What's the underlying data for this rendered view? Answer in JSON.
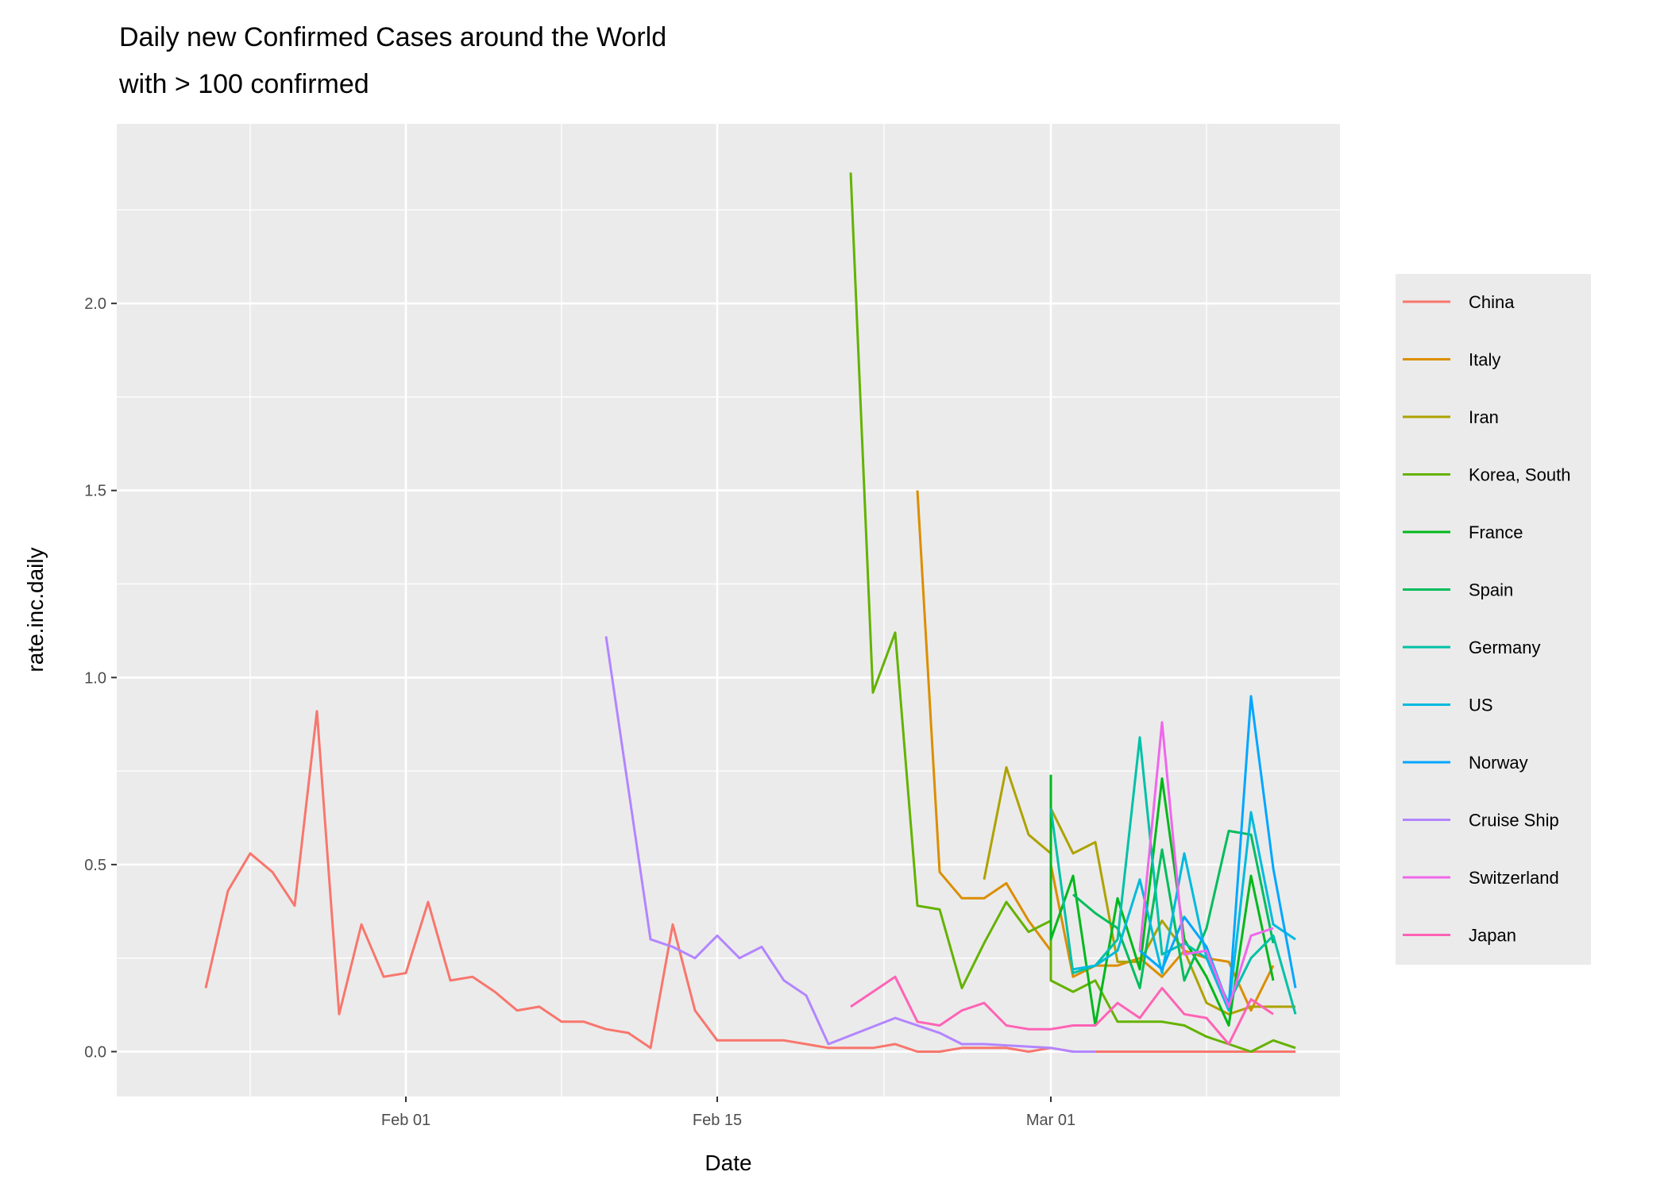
{
  "chart_data": {
    "type": "line",
    "title": "Daily new Confirmed Cases around the World",
    "subtitle": "with > 100 confirmed",
    "xlabel": "Date",
    "ylabel": "rate.inc.daily",
    "x_ticks": [
      {
        "date": "2020-02-01",
        "label": "Feb 01"
      },
      {
        "date": "2020-02-15",
        "label": "Feb 15"
      },
      {
        "date": "2020-03-01",
        "label": "Mar 01"
      }
    ],
    "y_ticks": [
      {
        "value": 0.0,
        "label": "0.0"
      },
      {
        "value": 0.5,
        "label": "0.5"
      },
      {
        "value": 1.0,
        "label": "1.0"
      },
      {
        "value": 1.5,
        "label": "1.5"
      },
      {
        "value": 2.0,
        "label": "2.0"
      }
    ],
    "xlim": [
      "2020-01-19",
      "2020-03-14"
    ],
    "ylim": [
      -0.12,
      2.48
    ],
    "grid": true,
    "legend_position": "right",
    "series": [
      {
        "name": "China",
        "color": "#F8766D",
        "points": [
          [
            "2020-01-23",
            0.17
          ],
          [
            "2020-01-24",
            0.43
          ],
          [
            "2020-01-25",
            0.53
          ],
          [
            "2020-01-26",
            0.48
          ],
          [
            "2020-01-27",
            0.39
          ],
          [
            "2020-01-28",
            0.91
          ],
          [
            "2020-01-29",
            0.1
          ],
          [
            "2020-01-30",
            0.34
          ],
          [
            "2020-01-31",
            0.2
          ],
          [
            "2020-02-01",
            0.21
          ],
          [
            "2020-02-02",
            0.4
          ],
          [
            "2020-02-03",
            0.19
          ],
          [
            "2020-02-04",
            0.2
          ],
          [
            "2020-02-05",
            0.16
          ],
          [
            "2020-02-06",
            0.11
          ],
          [
            "2020-02-07",
            0.12
          ],
          [
            "2020-02-08",
            0.08
          ],
          [
            "2020-02-09",
            0.08
          ],
          [
            "2020-02-10",
            0.06
          ],
          [
            "2020-02-11",
            0.05
          ],
          [
            "2020-02-12",
            0.01
          ],
          [
            "2020-02-13",
            0.34
          ],
          [
            "2020-02-14",
            0.11
          ],
          [
            "2020-02-15",
            0.03
          ],
          [
            "2020-02-16",
            0.03
          ],
          [
            "2020-02-17",
            0.03
          ],
          [
            "2020-02-18",
            0.03
          ],
          [
            "2020-02-19",
            0.02
          ],
          [
            "2020-02-20",
            0.01
          ],
          [
            "2020-02-21",
            0.01
          ],
          [
            "2020-02-22",
            0.01
          ],
          [
            "2020-02-23",
            0.02
          ],
          [
            "2020-02-24",
            0.0
          ],
          [
            "2020-02-25",
            0.0
          ],
          [
            "2020-02-26",
            0.01
          ],
          [
            "2020-02-27",
            0.01
          ],
          [
            "2020-02-28",
            0.01
          ],
          [
            "2020-02-29",
            0.0
          ],
          [
            "2020-03-01",
            0.01
          ],
          [
            "2020-03-02",
            0.0
          ],
          [
            "2020-03-03",
            0.0
          ],
          [
            "2020-03-04",
            0.0
          ],
          [
            "2020-03-05",
            0.0
          ],
          [
            "2020-03-06",
            0.0
          ],
          [
            "2020-03-07",
            0.0
          ],
          [
            "2020-03-08",
            0.0
          ],
          [
            "2020-03-09",
            0.0
          ],
          [
            "2020-03-10",
            0.0
          ],
          [
            "2020-03-11",
            0.0
          ],
          [
            "2020-03-12",
            0.0
          ]
        ]
      },
      {
        "name": "Italy",
        "color": "#DB8E00",
        "points": [
          [
            "2020-02-24",
            1.5
          ],
          [
            "2020-02-25",
            0.48
          ],
          [
            "2020-02-26",
            0.41
          ],
          [
            "2020-02-27",
            0.41
          ],
          [
            "2020-02-28",
            0.45
          ],
          [
            "2020-02-29",
            0.35
          ],
          [
            "2020-03-01",
            0.27
          ],
          [
            "2020-03-01",
            0.5
          ],
          [
            "2020-03-02",
            0.2
          ],
          [
            "2020-03-03",
            0.23
          ],
          [
            "2020-03-04",
            0.23
          ],
          [
            "2020-03-05",
            0.25
          ],
          [
            "2020-03-06",
            0.2
          ],
          [
            "2020-03-07",
            0.27
          ],
          [
            "2020-03-08",
            0.25
          ],
          [
            "2020-03-09",
            0.24
          ],
          [
            "2020-03-10",
            0.11
          ],
          [
            "2020-03-11",
            0.23
          ]
        ]
      },
      {
        "name": "Iran",
        "color": "#AEA200",
        "points": [
          [
            "2020-02-27",
            0.46
          ],
          [
            "2020-02-28",
            0.76
          ],
          [
            "2020-02-29",
            0.58
          ],
          [
            "2020-03-01",
            0.53
          ],
          [
            "2020-03-01",
            0.65
          ],
          [
            "2020-03-02",
            0.53
          ],
          [
            "2020-03-03",
            0.56
          ],
          [
            "2020-03-04",
            0.24
          ],
          [
            "2020-03-05",
            0.24
          ],
          [
            "2020-03-06",
            0.35
          ],
          [
            "2020-03-07",
            0.27
          ],
          [
            "2020-03-08",
            0.13
          ],
          [
            "2020-03-09",
            0.1
          ],
          [
            "2020-03-10",
            0.12
          ],
          [
            "2020-03-11",
            0.12
          ],
          [
            "2020-03-12",
            0.12
          ]
        ]
      },
      {
        "name": "Korea, South",
        "color": "#64B200",
        "points": [
          [
            "2020-02-21",
            2.35
          ],
          [
            "2020-02-22",
            0.96
          ],
          [
            "2020-02-23",
            1.12
          ],
          [
            "2020-02-24",
            0.39
          ],
          [
            "2020-02-25",
            0.38
          ],
          [
            "2020-02-26",
            0.17
          ],
          [
            "2020-02-27",
            0.29
          ],
          [
            "2020-02-28",
            0.4
          ],
          [
            "2020-02-29",
            0.32
          ],
          [
            "2020-03-01",
            0.35
          ],
          [
            "2020-03-01",
            0.19
          ],
          [
            "2020-03-02",
            0.16
          ],
          [
            "2020-03-03",
            0.19
          ],
          [
            "2020-03-04",
            0.08
          ],
          [
            "2020-03-05",
            0.08
          ],
          [
            "2020-03-06",
            0.08
          ],
          [
            "2020-03-07",
            0.07
          ],
          [
            "2020-03-08",
            0.04
          ],
          [
            "2020-03-09",
            0.02
          ],
          [
            "2020-03-10",
            0.0
          ],
          [
            "2020-03-11",
            0.03
          ],
          [
            "2020-03-12",
            0.01
          ]
        ]
      },
      {
        "name": "France",
        "color": "#00B81B",
        "points": [
          [
            "2020-03-01",
            0.74
          ],
          [
            "2020-03-01",
            0.3
          ],
          [
            "2020-03-02",
            0.47
          ],
          [
            "2020-03-03",
            0.07
          ],
          [
            "2020-03-04",
            0.41
          ],
          [
            "2020-03-05",
            0.22
          ],
          [
            "2020-03-06",
            0.73
          ],
          [
            "2020-03-07",
            0.3
          ],
          [
            "2020-03-08",
            0.2
          ],
          [
            "2020-03-09",
            0.07
          ],
          [
            "2020-03-10",
            0.47
          ],
          [
            "2020-03-11",
            0.19
          ]
        ]
      },
      {
        "name": "Spain",
        "color": "#00BD5C",
        "points": [
          [
            "2020-03-02",
            0.42
          ],
          [
            "2020-03-03",
            0.37
          ],
          [
            "2020-03-04",
            0.33
          ],
          [
            "2020-03-05",
            0.17
          ],
          [
            "2020-03-06",
            0.54
          ],
          [
            "2020-03-07",
            0.19
          ],
          [
            "2020-03-08",
            0.33
          ],
          [
            "2020-03-09",
            0.59
          ],
          [
            "2020-03-10",
            0.58
          ],
          [
            "2020-03-11",
            0.29
          ]
        ]
      },
      {
        "name": "Germany",
        "color": "#00C1A7",
        "points": [
          [
            "2020-03-01",
            0.65
          ],
          [
            "2020-03-02",
            0.21
          ],
          [
            "2020-03-03",
            0.23
          ],
          [
            "2020-03-04",
            0.3
          ],
          [
            "2020-03-05",
            0.84
          ],
          [
            "2020-03-06",
            0.26
          ],
          [
            "2020-03-07",
            0.29
          ],
          [
            "2020-03-08",
            0.25
          ],
          [
            "2020-03-09",
            0.13
          ],
          [
            "2020-03-10",
            0.25
          ],
          [
            "2020-03-11",
            0.31
          ],
          [
            "2020-03-12",
            0.1
          ]
        ]
      },
      {
        "name": "US",
        "color": "#00BADE",
        "points": [
          [
            "2020-03-02",
            0.22
          ],
          [
            "2020-03-03",
            0.23
          ],
          [
            "2020-03-04",
            0.27
          ],
          [
            "2020-03-05",
            0.46
          ],
          [
            "2020-03-06",
            0.21
          ],
          [
            "2020-03-07",
            0.53
          ],
          [
            "2020-03-08",
            0.25
          ],
          [
            "2020-03-09",
            0.11
          ],
          [
            "2020-03-10",
            0.64
          ],
          [
            "2020-03-11",
            0.34
          ],
          [
            "2020-03-12",
            0.3
          ]
        ]
      },
      {
        "name": "Norway",
        "color": "#00A6FF",
        "points": [
          [
            "2020-03-05",
            0.27
          ],
          [
            "2020-03-06",
            0.22
          ],
          [
            "2020-03-07",
            0.36
          ],
          [
            "2020-03-08",
            0.28
          ],
          [
            "2020-03-09",
            0.12
          ],
          [
            "2020-03-10",
            0.95
          ],
          [
            "2020-03-11",
            0.49
          ],
          [
            "2020-03-12",
            0.17
          ]
        ]
      },
      {
        "name": "Cruise Ship",
        "color": "#B385FF",
        "points": [
          [
            "2020-02-10",
            1.11
          ],
          [
            "2020-02-12",
            0.3
          ],
          [
            "2020-02-13",
            0.28
          ],
          [
            "2020-02-14",
            0.25
          ],
          [
            "2020-02-15",
            0.31
          ],
          [
            "2020-02-16",
            0.25
          ],
          [
            "2020-02-17",
            0.28
          ],
          [
            "2020-02-18",
            0.19
          ],
          [
            "2020-02-19",
            0.15
          ],
          [
            "2020-02-20",
            0.02
          ],
          [
            "2020-02-23",
            0.09
          ],
          [
            "2020-02-25",
            0.05
          ],
          [
            "2020-02-26",
            0.02
          ],
          [
            "2020-02-27",
            0.02
          ],
          [
            "2020-03-01",
            0.01
          ],
          [
            "2020-03-02",
            0.0
          ],
          [
            "2020-03-03",
            0.0
          ]
        ]
      },
      {
        "name": "Switzerland",
        "color": "#EF67EB",
        "points": [
          [
            "2020-03-05",
            0.27
          ],
          [
            "2020-03-06",
            0.88
          ],
          [
            "2020-03-07",
            0.26
          ],
          [
            "2020-03-08",
            0.27
          ],
          [
            "2020-03-09",
            0.12
          ],
          [
            "2020-03-10",
            0.31
          ],
          [
            "2020-03-11",
            0.33
          ]
        ]
      },
      {
        "name": "Japan",
        "color": "#FF63B6",
        "points": [
          [
            "2020-02-21",
            0.12
          ],
          [
            "2020-02-22",
            0.16
          ],
          [
            "2020-02-23",
            0.2
          ],
          [
            "2020-02-24",
            0.08
          ],
          [
            "2020-02-25",
            0.07
          ],
          [
            "2020-02-26",
            0.11
          ],
          [
            "2020-02-27",
            0.13
          ],
          [
            "2020-02-28",
            0.07
          ],
          [
            "2020-02-29",
            0.06
          ],
          [
            "2020-03-01",
            0.06
          ],
          [
            "2020-03-02",
            0.07
          ],
          [
            "2020-03-03",
            0.07
          ],
          [
            "2020-03-04",
            0.13
          ],
          [
            "2020-03-05",
            0.09
          ],
          [
            "2020-03-06",
            0.17
          ],
          [
            "2020-03-07",
            0.1
          ],
          [
            "2020-03-08",
            0.09
          ],
          [
            "2020-03-09",
            0.02
          ],
          [
            "2020-03-10",
            0.14
          ],
          [
            "2020-03-11",
            0.1
          ]
        ]
      }
    ]
  }
}
